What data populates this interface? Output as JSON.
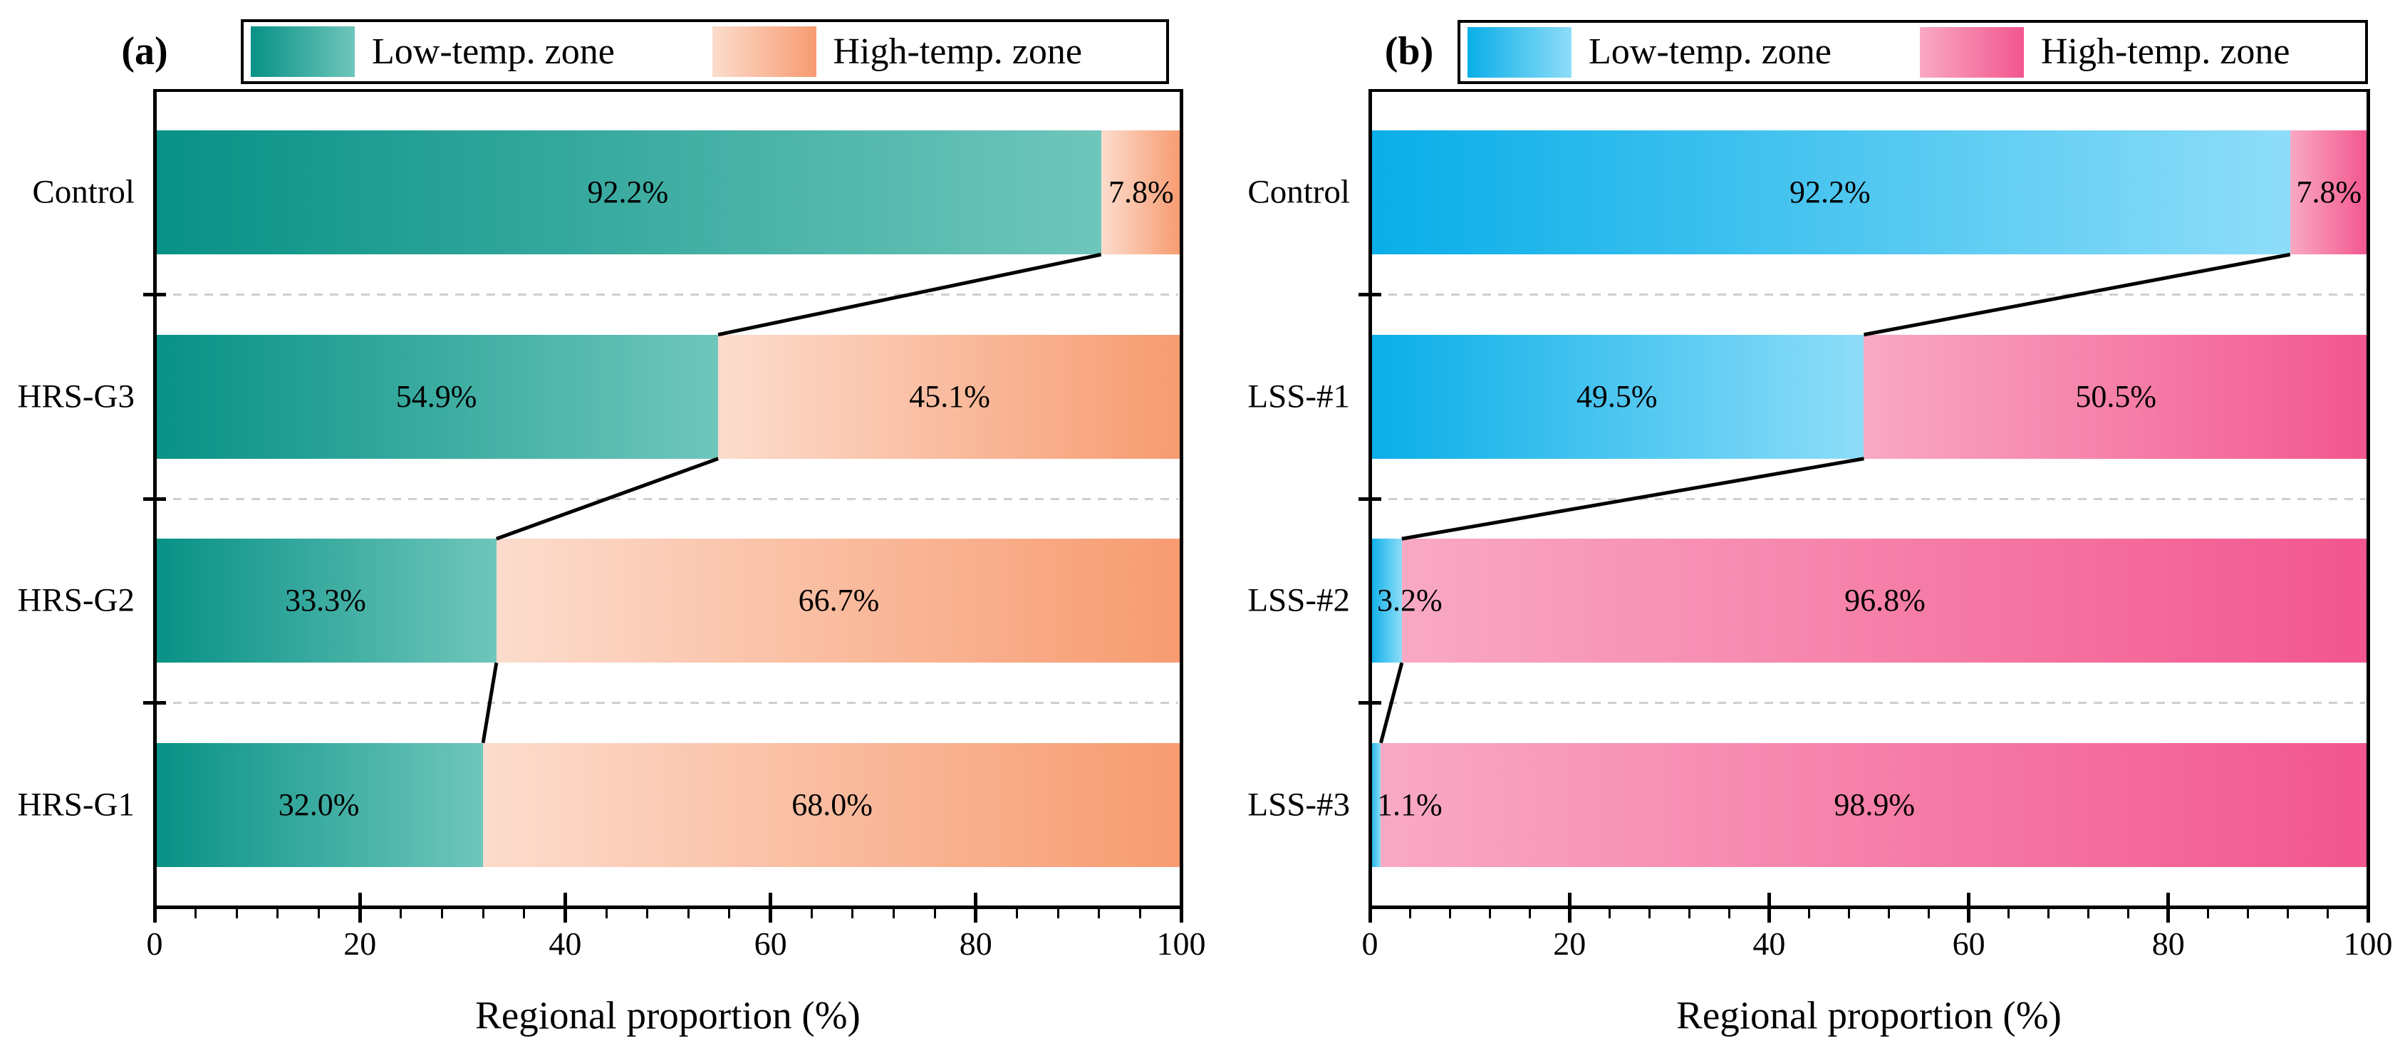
{
  "figure": {
    "background": "#ffffff",
    "xlabel": "Regional proportion (%)",
    "x_tick_labels": [
      "0",
      "20",
      "40",
      "60",
      "80",
      "100"
    ],
    "legend": {
      "items": [
        {
          "label": "Low-temp. zone"
        },
        {
          "label": "High-temp. zone"
        }
      ]
    }
  },
  "colors": {
    "axis": "#000000",
    "gridline": "#cfcfcf",
    "connector_line": "#000000",
    "label_text": "#000000"
  },
  "chart_data": [
    {
      "type": "bar",
      "orientation": "horizontal",
      "stacked": true,
      "panel_title": "(a)",
      "categories": [
        "Control",
        "HRS-G3",
        "HRS-G2",
        "HRS-G1"
      ],
      "series": [
        {
          "name": "Low-temp. zone",
          "values": [
            92.2,
            54.9,
            33.3,
            32.0
          ],
          "labels": [
            "92.2%",
            "54.9%",
            "33.3%",
            "32.0%"
          ],
          "gradient": [
            "#089186",
            "#6fc6bb"
          ]
        },
        {
          "name": "High-temp. zone",
          "values": [
            7.8,
            45.1,
            66.7,
            68.0
          ],
          "labels": [
            "7.8%",
            "45.1%",
            "66.7%",
            "68.0%"
          ],
          "gradient": [
            "#fcdccd",
            "#f79b70"
          ]
        }
      ],
      "xlabel": "Regional proportion (%)",
      "xlim": [
        0,
        100
      ],
      "x_ticks": [
        0,
        20,
        40,
        60,
        80,
        100
      ],
      "minor_tick_step": 4,
      "gridlines": "dashed gray lines between category rows",
      "legend_position": "top",
      "annotations": "black connector lines join segment boundaries of adjacent bars"
    },
    {
      "type": "bar",
      "orientation": "horizontal",
      "stacked": true,
      "panel_title": "(b)",
      "categories": [
        "Control",
        "LSS-#1",
        "LSS-#2",
        "LSS-#3"
      ],
      "series": [
        {
          "name": "Low-temp. zone",
          "values": [
            92.2,
            49.5,
            3.2,
            1.1
          ],
          "labels": [
            "92.2%",
            "49.5%",
            "3.2%",
            "1.1%"
          ],
          "gradient": [
            "#09aee8",
            "#8eddf8"
          ]
        },
        {
          "name": "High-temp. zone",
          "values": [
            7.8,
            50.5,
            96.8,
            98.9
          ],
          "labels": [
            "7.8%",
            "50.5%",
            "96.8%",
            "98.9%"
          ],
          "gradient": [
            "#f9a9c4",
            "#f2568e"
          ]
        }
      ],
      "xlabel": "Regional proportion (%)",
      "xlim": [
        0,
        100
      ],
      "x_ticks": [
        0,
        20,
        40,
        60,
        80,
        100
      ],
      "minor_tick_step": 4,
      "gridlines": "dashed gray lines between category rows",
      "legend_position": "top",
      "annotations": "black connector lines join segment boundaries of adjacent bars"
    }
  ]
}
